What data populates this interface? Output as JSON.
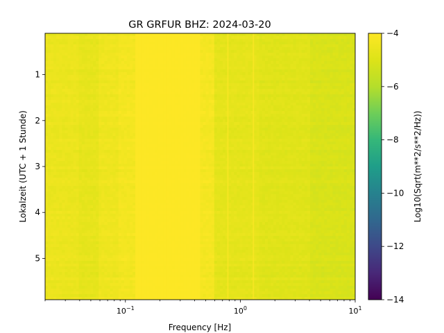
{
  "chart_data": {
    "type": "heatmap",
    "title": "GR GRFUR  BHZ: 2024-03-20",
    "xlabel": "Frequency [Hz]",
    "ylabel": "Lokalzeit (UTC + 1 Stunde)",
    "x_scale": "log",
    "xlim": [
      0.02,
      10
    ],
    "x_ticks": [
      {
        "value": 0.1,
        "base": "10",
        "exp": "−1"
      },
      {
        "value": 1,
        "base": "10",
        "exp": "0"
      },
      {
        "value": 10,
        "base": "10",
        "exp": "1"
      }
    ],
    "ylim": [
      0.1,
      5.9
    ],
    "y_inverted": true,
    "y_ticks": [
      {
        "value": 1,
        "label": "1"
      },
      {
        "value": 2,
        "label": "2"
      },
      {
        "value": 3,
        "label": "3"
      },
      {
        "value": 4,
        "label": "4"
      },
      {
        "value": 5,
        "label": "5"
      }
    ],
    "colormap": "viridis",
    "colorbar": {
      "label": "Log10(Sqrt(m**2/s**2/Hz))",
      "range": [
        -14,
        -4
      ],
      "ticks": [
        {
          "value": -4,
          "label": "−4"
        },
        {
          "value": -6,
          "label": "−6"
        },
        {
          "value": -8,
          "label": "−8"
        },
        {
          "value": -10,
          "label": "−10"
        },
        {
          "value": -12,
          "label": "−12"
        },
        {
          "value": -14,
          "label": "−14"
        }
      ]
    },
    "freq_profile": [
      {
        "f_min": 0.02,
        "f_max": 0.04,
        "level": -4.55
      },
      {
        "f_min": 0.04,
        "f_max": 0.06,
        "level": -4.7
      },
      {
        "f_min": 0.06,
        "f_max": 0.085,
        "level": -4.45
      },
      {
        "f_min": 0.085,
        "f_max": 0.12,
        "level": -4.3
      },
      {
        "f_min": 0.12,
        "f_max": 0.45,
        "level": -4.02
      },
      {
        "f_min": 0.45,
        "f_max": 0.6,
        "level": -4.25
      },
      {
        "f_min": 0.6,
        "f_max": 1.5,
        "level": -4.75
      },
      {
        "f_min": 1.5,
        "f_max": 4,
        "level": -4.9
      },
      {
        "f_min": 4,
        "f_max": 10,
        "level": -5.1
      }
    ],
    "narrow_lines_hz": [
      0.78,
      1.3
    ]
  }
}
